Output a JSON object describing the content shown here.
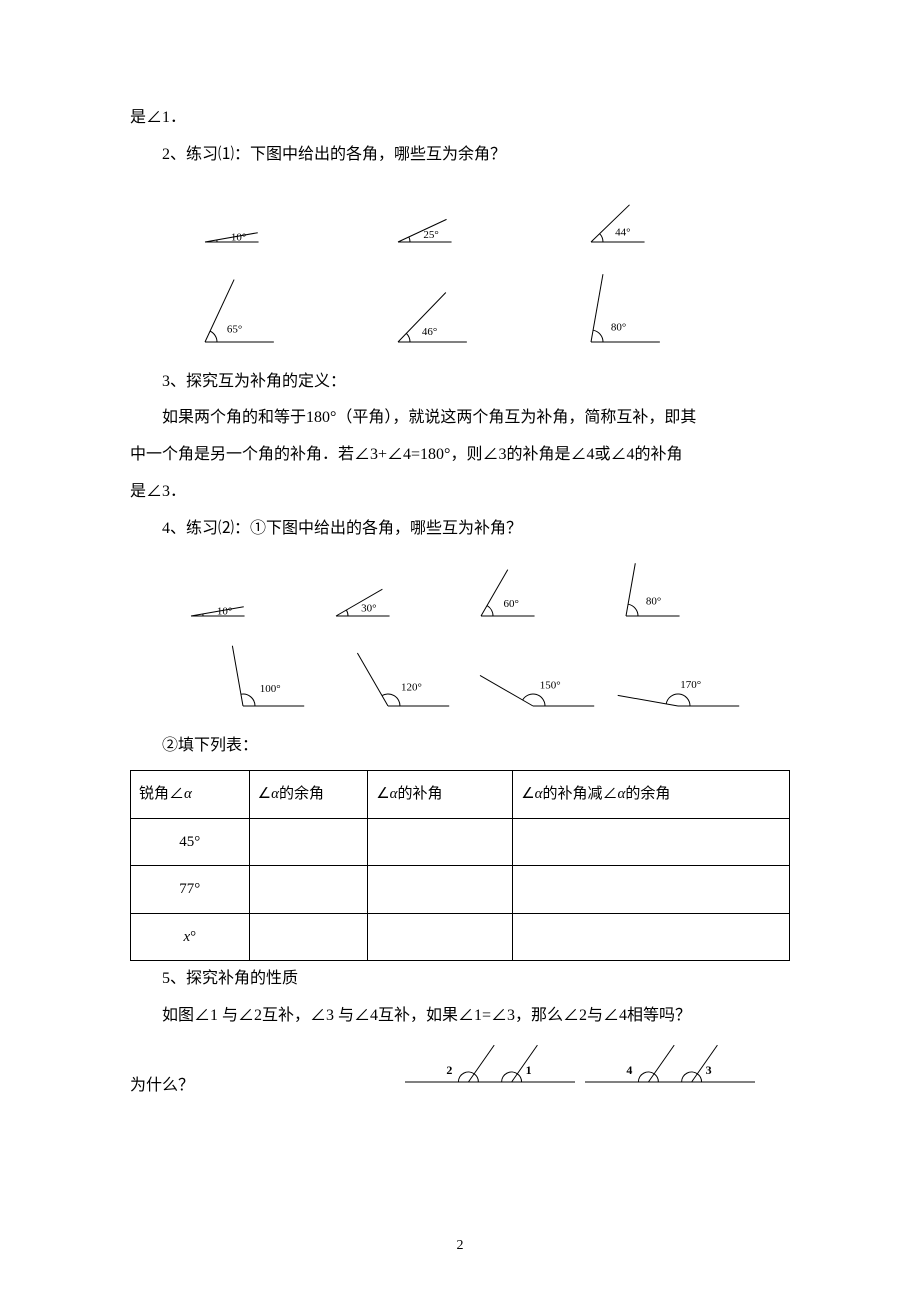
{
  "line1": "是∠1．",
  "line2": "2、练习⑴：下图中给出的各角，哪些互为余角？",
  "complementary_angles": {
    "row1": [
      {
        "label": "10°",
        "deg": 10
      },
      {
        "label": "25°",
        "deg": 25
      },
      {
        "label": "44°",
        "deg": 44
      }
    ],
    "row2": [
      {
        "label": "65°",
        "deg": 65
      },
      {
        "label": "46°",
        "deg": 46
      },
      {
        "label": "80°",
        "deg": 80
      }
    ],
    "stroke": "#000000",
    "stroke_width": 1,
    "font_size": 11
  },
  "line3": "3、探究互为补角的定义：",
  "line4": "如果两个角的和等于180°（平角），就说这两个角互为补角，简称互补，即其",
  "line4b": "中一个角是另一个角的补角．若∠3+∠4=180°，则∠3的补角是∠4或∠4的补角",
  "line4c": "是∠3．",
  "line5": "4、练习⑵：①下图中给出的各角，哪些互为补角？",
  "supplementary_angles": {
    "row1": [
      {
        "label": "10°",
        "deg": 10
      },
      {
        "label": "30°",
        "deg": 30
      },
      {
        "label": "60°",
        "deg": 60
      },
      {
        "label": "80°",
        "deg": 80
      }
    ],
    "row2": [
      {
        "label": "100°",
        "deg": 100
      },
      {
        "label": "120°",
        "deg": 120
      },
      {
        "label": "150°",
        "deg": 150
      },
      {
        "label": "170°",
        "deg": 170
      }
    ],
    "stroke": "#000000",
    "stroke_width": 1,
    "font_size": 11
  },
  "line6": "②填下列表：",
  "table": {
    "headers": [
      "锐角∠α",
      "∠α的余角",
      "∠α的补角",
      "∠α的补角减∠α的余角"
    ],
    "rows": [
      [
        "45°",
        "",
        "",
        ""
      ],
      [
        "77°",
        "",
        "",
        ""
      ],
      [
        "x°",
        "",
        "",
        ""
      ]
    ],
    "col_widths_pct": [
      18,
      18,
      22,
      42
    ]
  },
  "line7": "5、探究补角的性质",
  "line8": "如图∠1 与∠2互补，∠3 与∠4互补，如果∠1=∠3，那么∠2与∠4相等吗？",
  "line9": "为什么？",
  "q5_diagram": {
    "pairs": [
      {
        "left_label": "2",
        "right_label": "1"
      },
      {
        "left_label": "4",
        "right_label": "3"
      }
    ],
    "stroke": "#000000",
    "font_size": 12,
    "font_weight": "bold"
  },
  "page_number": "2"
}
